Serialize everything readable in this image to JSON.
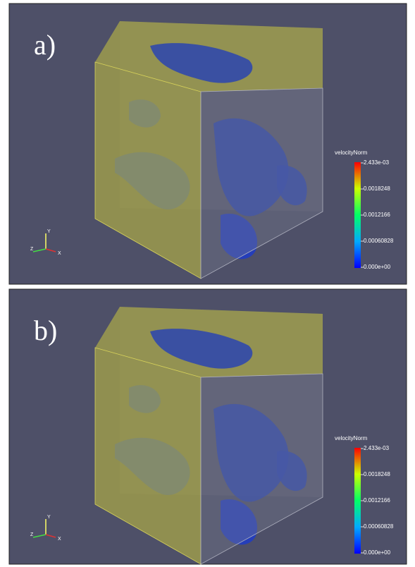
{
  "panels": [
    {
      "label": "a)",
      "colorbar": {
        "title": "velocityNorm",
        "labels": [
          "2.433e-03",
          "0.0018248",
          "0.0012166",
          "0.00060828",
          "0.000e+00"
        ]
      },
      "axes": {
        "y": "Y",
        "z": "Z",
        "x": "X"
      }
    },
    {
      "label": "b)",
      "colorbar": {
        "title": "velocityNorm",
        "labels": [
          "2.433e-03",
          "0.0018248",
          "0.0012166",
          "0.00060828",
          "0.000e+00"
        ]
      },
      "axes": {
        "y": "Y",
        "z": "Z",
        "x": "X"
      }
    }
  ]
}
